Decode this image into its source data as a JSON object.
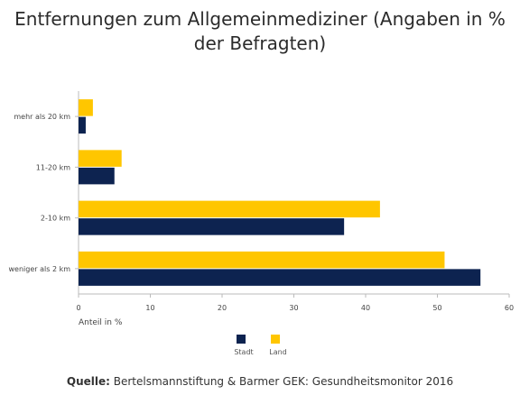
{
  "chart_data": {
    "type": "bar",
    "orientation": "horizontal",
    "title": "Entfernungen zum Allgemeinmediziner (Angaben in % der Befragten)",
    "categories": [
      "mehr als 20 km",
      "11-20 km",
      "2-10 km",
      "weniger als 2 km"
    ],
    "series": [
      {
        "name": "Stadt",
        "color": "#0d2350",
        "values": [
          1,
          5,
          37,
          56
        ]
      },
      {
        "name": "Land",
        "color": "#ffc600",
        "values": [
          2,
          6,
          42,
          51
        ]
      }
    ],
    "xlabel": "Anteil in %",
    "xlim": [
      0,
      60
    ],
    "xticks": [
      "0",
      "10",
      "20",
      "30",
      "40",
      "50",
      "60"
    ],
    "grid": false,
    "legend_position": "bottom"
  },
  "source": {
    "label": "Quelle:",
    "text": " Bertelsmannstiftung & Barmer GEK: Gesundheitsmonitor 2016"
  }
}
